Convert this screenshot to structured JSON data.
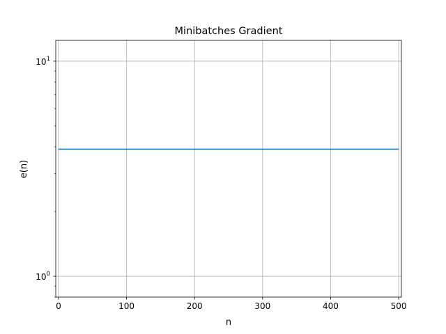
{
  "chart_data": {
    "type": "line",
    "title": "Minibatches Gradient",
    "xlabel": "n",
    "ylabel": "e(n)",
    "xscale": "linear",
    "yscale": "log",
    "xlim": [
      -4,
      504
    ],
    "ylim": [
      0.8,
      12.5
    ],
    "grid": true,
    "legend": "none",
    "x_ticks": [
      0,
      100,
      200,
      300,
      400,
      500
    ],
    "x_tick_labels": [
      "0",
      "100",
      "200",
      "300",
      "400",
      "500"
    ],
    "y_ticks": [
      1,
      10
    ],
    "y_tick_labels": [
      {
        "base": "10",
        "exp": "0"
      },
      {
        "base": "10",
        "exp": "1"
      }
    ],
    "series": [
      {
        "color": "#1f77b4",
        "x": [
          0,
          500
        ],
        "y": [
          3.9,
          3.9
        ]
      }
    ]
  }
}
